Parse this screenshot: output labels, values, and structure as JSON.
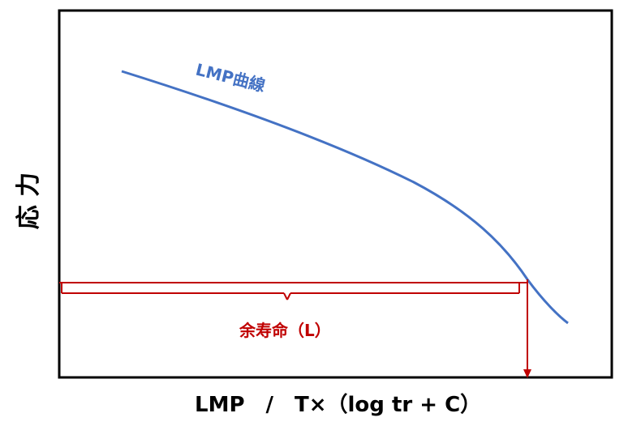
{
  "y_axis_label": "応 力",
  "x_axis_label": "LMP　/　T×（log tr + C）",
  "curve_label": "LMP曲線",
  "remaining_life_label": "余寿命（L）",
  "colors": {
    "curve": "#4472C4",
    "life": "#C00000",
    "frame": "#000000"
  }
}
